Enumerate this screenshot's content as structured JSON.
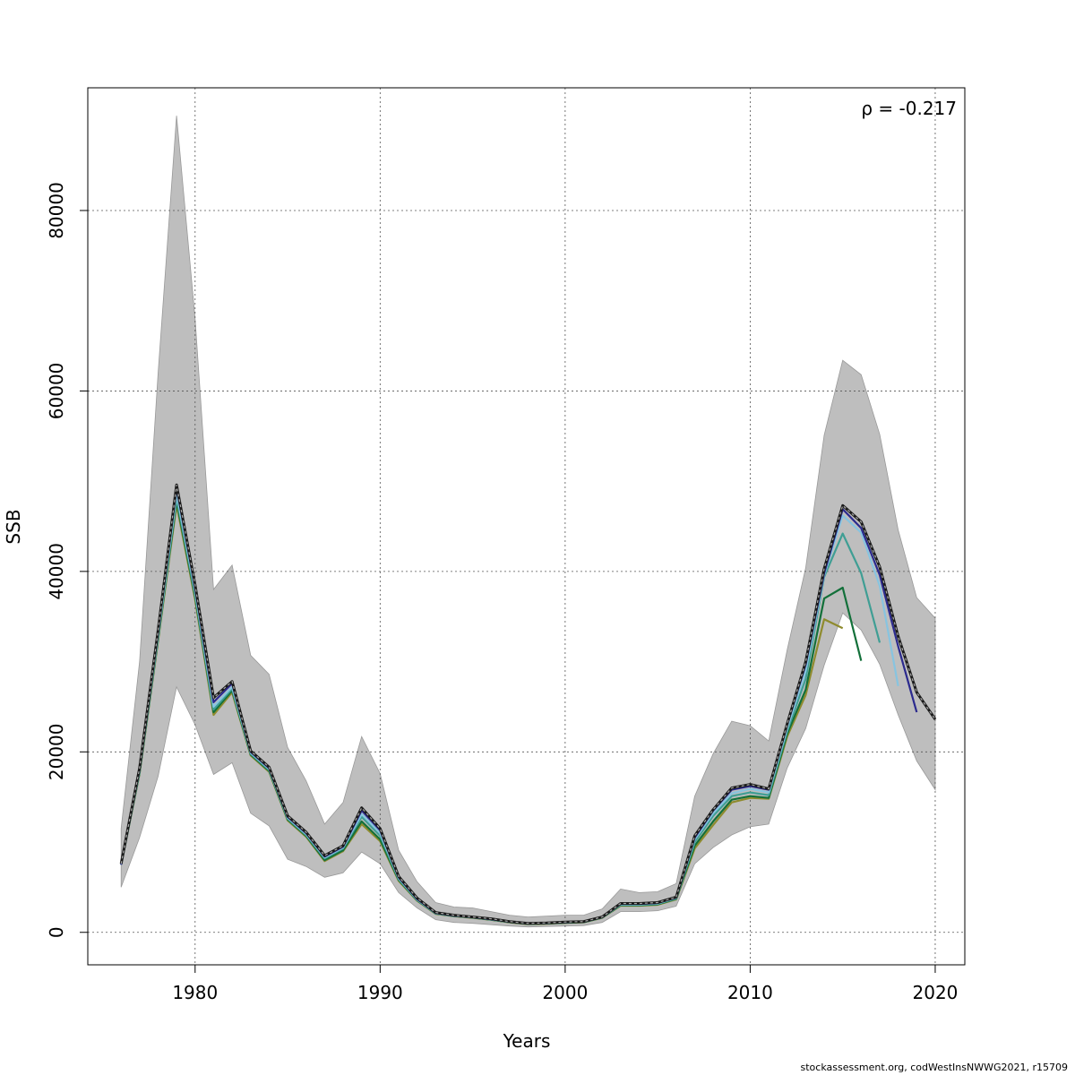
{
  "chart_data": {
    "type": "line",
    "xlabel": "Years",
    "ylabel": "SSB",
    "xlim": [
      1974.2,
      2021.6
    ],
    "ylim": [
      -3600,
      93600
    ],
    "x_ticks": [
      "1980",
      "1990",
      "2000",
      "2010",
      "2020"
    ],
    "y_ticks": [
      "0",
      "20000",
      "40000",
      "60000",
      "80000"
    ],
    "grid": true,
    "annotation": "ρ = -0.217",
    "band": {
      "x": [
        1976,
        1977,
        1978,
        1979,
        1980,
        1981,
        1982,
        1983,
        1984,
        1985,
        1986,
        1987,
        1988,
        1989,
        1990,
        1991,
        1992,
        1993,
        1994,
        1995,
        1996,
        1997,
        1998,
        1999,
        2000,
        2001,
        2002,
        2003,
        2004,
        2005,
        2006,
        2007,
        2008,
        2009,
        2010,
        2011,
        2012,
        2013,
        2014,
        2015,
        2016,
        2017,
        2018,
        2019,
        2020
      ],
      "upper": [
        11500,
        30000,
        62000,
        90500,
        68000,
        38000,
        40700,
        30700,
        28600,
        20500,
        16800,
        12000,
        14400,
        21700,
        17600,
        9100,
        5600,
        3300,
        2800,
        2700,
        2300,
        1900,
        1700,
        1800,
        1900,
        1900,
        2600,
        4800,
        4400,
        4500,
        5400,
        15100,
        19800,
        23400,
        22900,
        21200,
        31300,
        40400,
        55100,
        63400,
        61800,
        55200,
        44600,
        37100,
        34800
      ],
      "lower": [
        5000,
        10500,
        17300,
        27200,
        23000,
        17500,
        18800,
        13200,
        11800,
        8100,
        7300,
        6100,
        6600,
        8900,
        7600,
        4400,
        2700,
        1400,
        1100,
        1000,
        850,
        700,
        600,
        650,
        700,
        750,
        1100,
        2300,
        2300,
        2400,
        2900,
        7600,
        9400,
        10800,
        11700,
        12000,
        18200,
        22600,
        29600,
        35400,
        33500,
        29700,
        24100,
        19000,
        15800
      ]
    },
    "series": [
      {
        "color": "#555555",
        "dashed": true,
        "x": [
          1976,
          1977,
          1978,
          1979,
          1980,
          1981,
          1982,
          1983,
          1984,
          1985,
          1986,
          1987,
          1988,
          1989,
          1990,
          1991,
          1992,
          1993,
          1994,
          1995,
          1996,
          1997,
          1998,
          1999,
          2000,
          2001,
          2002,
          2003,
          2004,
          2005,
          2006,
          2007,
          2008,
          2009,
          2010,
          2011,
          2012,
          2013,
          2014,
          2015,
          2016,
          2017,
          2018,
          2019,
          2020
        ],
        "values": [
          7600,
          18200,
          33500,
          49600,
          38500,
          26000,
          27800,
          20100,
          18300,
          12900,
          11100,
          8500,
          9600,
          13800,
          11500,
          6200,
          3800,
          2200,
          1900,
          1700,
          1500,
          1200,
          1000,
          1050,
          1150,
          1200,
          1700,
          3200,
          3200,
          3300,
          3900,
          10700,
          13600,
          16000,
          16400,
          15900,
          23100,
          30000,
          40300,
          47300,
          45500,
          40500,
          32800,
          26600,
          23600
        ]
      },
      {
        "color": "#2b2a8e",
        "x": [
          1976,
          1977,
          1978,
          1979,
          1980,
          1981,
          1982,
          1983,
          1984,
          1985,
          1986,
          1987,
          1988,
          1989,
          1990,
          1991,
          1992,
          1993,
          1994,
          1995,
          1996,
          1997,
          1998,
          1999,
          2000,
          2001,
          2002,
          2003,
          2004,
          2005,
          2006,
          2007,
          2008,
          2009,
          2010,
          2011,
          2012,
          2013,
          2014,
          2015,
          2016,
          2017,
          2018,
          2019
        ],
        "values": [
          7500,
          18100,
          33400,
          49300,
          38200,
          25500,
          27600,
          20000,
          18200,
          12800,
          11000,
          8400,
          9500,
          13500,
          11300,
          6100,
          3700,
          2150,
          1850,
          1680,
          1450,
          1180,
          980,
          1030,
          1120,
          1180,
          1680,
          3150,
          3150,
          3250,
          3850,
          10500,
          13500,
          15800,
          16200,
          15800,
          23000,
          29700,
          39800,
          46900,
          44800,
          39600,
          31700,
          24400
        ]
      },
      {
        "color": "#87c4e0",
        "x": [
          1976,
          1977,
          1978,
          1979,
          1980,
          1981,
          1982,
          1983,
          1984,
          1985,
          1986,
          1987,
          1988,
          1989,
          1990,
          1991,
          1992,
          1993,
          1994,
          1995,
          1996,
          1997,
          1998,
          1999,
          2000,
          2001,
          2002,
          2003,
          2004,
          2005,
          2006,
          2007,
          2008,
          2009,
          2010,
          2011,
          2012,
          2013,
          2014,
          2015,
          2016,
          2017,
          2018
        ],
        "values": [
          7500,
          17900,
          32900,
          48600,
          37800,
          25000,
          27200,
          19900,
          18100,
          12700,
          10900,
          8300,
          9400,
          13100,
          11000,
          6000,
          3650,
          2120,
          1830,
          1660,
          1430,
          1160,
          960,
          1010,
          1100,
          1160,
          1660,
          3100,
          3100,
          3200,
          3800,
          10300,
          13200,
          15400,
          15900,
          15500,
          22600,
          29000,
          39600,
          46200,
          44300,
          38400,
          27300
        ]
      },
      {
        "color": "#3f9e94",
        "x": [
          1976,
          1977,
          1978,
          1979,
          1980,
          1981,
          1982,
          1983,
          1984,
          1985,
          1986,
          1987,
          1988,
          1989,
          1990,
          1991,
          1992,
          1993,
          1994,
          1995,
          1996,
          1997,
          1998,
          1999,
          2000,
          2001,
          2002,
          2003,
          2004,
          2005,
          2006,
          2007,
          2008,
          2009,
          2010,
          2011,
          2012,
          2013,
          2014,
          2015,
          2016,
          2017
        ],
        "values": [
          7500,
          17800,
          32700,
          48200,
          37500,
          24700,
          27000,
          19800,
          18000,
          12600,
          10800,
          8200,
          9300,
          12800,
          10700,
          5900,
          3600,
          2100,
          1820,
          1650,
          1420,
          1150,
          950,
          1000,
          1090,
          1150,
          1650,
          3050,
          3050,
          3150,
          3750,
          10000,
          12900,
          15100,
          15500,
          15200,
          22300,
          28100,
          39400,
          44200,
          39800,
          32100
        ]
      },
      {
        "color": "#13703a",
        "x": [
          1976,
          1977,
          1978,
          1979,
          1980,
          1981,
          1982,
          1983,
          1984,
          1985,
          1986,
          1987,
          1988,
          1989,
          1990,
          1991,
          1992,
          1993,
          1994,
          1995,
          1996,
          1997,
          1998,
          1999,
          2000,
          2001,
          2002,
          2003,
          2004,
          2005,
          2006,
          2007,
          2008,
          2009,
          2010,
          2011,
          2012,
          2013,
          2014,
          2015,
          2016
        ],
        "values": [
          7500,
          17700,
          32500,
          47800,
          37200,
          24400,
          26800,
          19700,
          17900,
          12500,
          10700,
          8000,
          9100,
          12300,
          10300,
          5800,
          3550,
          2080,
          1800,
          1630,
          1400,
          1130,
          930,
          980,
          1070,
          1130,
          1630,
          3000,
          3000,
          3100,
          3700,
          9600,
          12300,
          14700,
          15100,
          14900,
          22000,
          26900,
          37000,
          38200,
          30100
        ]
      },
      {
        "color": "#8f8b2e",
        "x": [
          1976,
          1977,
          1978,
          1979,
          1980,
          1981,
          1982,
          1983,
          1984,
          1985,
          1986,
          1987,
          1988,
          1989,
          1990,
          1991,
          1992,
          1993,
          1994,
          1995,
          1996,
          1997,
          1998,
          1999,
          2000,
          2001,
          2002,
          2003,
          2004,
          2005,
          2006,
          2007,
          2008,
          2009,
          2010,
          2011,
          2012,
          2013,
          2014,
          2015
        ],
        "values": [
          7500,
          17600,
          32300,
          47400,
          36900,
          24100,
          26600,
          19600,
          17800,
          12400,
          10600,
          7900,
          9000,
          12000,
          10100,
          5700,
          3500,
          2050,
          1780,
          1610,
          1380,
          1110,
          910,
          960,
          1050,
          1110,
          1610,
          2950,
          2950,
          3050,
          3650,
          9300,
          11900,
          14400,
          14900,
          14800,
          21700,
          26300,
          34700,
          33700
        ]
      }
    ]
  },
  "footer": "stockassessment.org, codWestInsNWWG2021, r15709"
}
